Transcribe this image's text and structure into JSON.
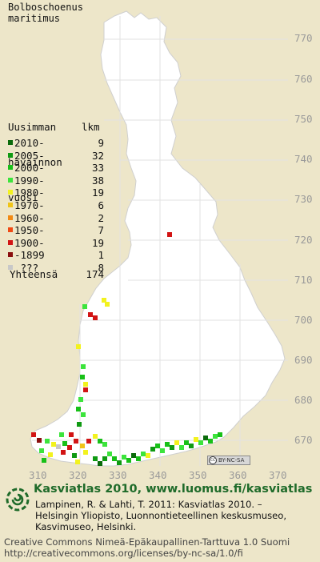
{
  "species": {
    "line1": "Bolboschoenus",
    "line2": "maritimus"
  },
  "legend": {
    "heading_line1": "Uusimman",
    "heading_line2": "havainnon",
    "heading_line3": "vuosi",
    "count_heading": "lkm",
    "entries": [
      {
        "label": "2010-",
        "count": "9",
        "color": "#0b6b0b"
      },
      {
        "label": "2005-",
        "count": "32",
        "color": "#0f9a12"
      },
      {
        "label": "2000-",
        "count": "33",
        "color": "#18c018"
      },
      {
        "label": "1990-",
        "count": "38",
        "color": "#3ce43c"
      },
      {
        "label": "1980-",
        "count": "19",
        "color": "#f2f21e"
      },
      {
        "label": "1970-",
        "count": "6",
        "color": "#f0c418"
      },
      {
        "label": "1960-",
        "count": "2",
        "color": "#f28a14"
      },
      {
        "label": "1950-",
        "count": "7",
        "color": "#f04a14"
      },
      {
        "label": "1900-",
        "count": "19",
        "color": "#d21414"
      },
      {
        "label": "-1899",
        "count": "1",
        "color": "#8a0e0e"
      },
      {
        "label": " ???",
        "count": "8",
        "color": "#c8c8c8"
      }
    ],
    "total_label": "Yhteensä",
    "total_value": "174"
  },
  "axes": {
    "y_ticks": [
      "770",
      "760",
      "750",
      "740",
      "730",
      "720",
      "710",
      "700",
      "690",
      "680",
      "670"
    ],
    "x_ticks": [
      "310",
      "320",
      "330",
      "340",
      "350",
      "360",
      "370"
    ]
  },
  "license_badge": {
    "text": "BY-NC-SA",
    "cc": "cc"
  },
  "footer": {
    "title": "Kasviatlas 2010, www.luomus.fi/kasviatlas",
    "reference": "Lampinen, R. & Lahti, T. 2011: Kasviatlas 2010. – Helsingin Yliopisto, Luonnontieteellinen keskusmuseo, Kasvimuseo, Helsinki.",
    "license_line1": "Creative Commons Nimeä-Epäkaupallinen-Tarttuva 1.0 Suomi",
    "license_line2": "http://creativecommons.org/licenses/by-nc-sa/1.0/fi"
  },
  "colors": {
    "map_land": "#ffffff",
    "background": "#ede6c9",
    "grid": "#e4e4e4",
    "title_green": "#1f6b2a"
  },
  "icons": {
    "logo": "fern-spiral-logo"
  }
}
